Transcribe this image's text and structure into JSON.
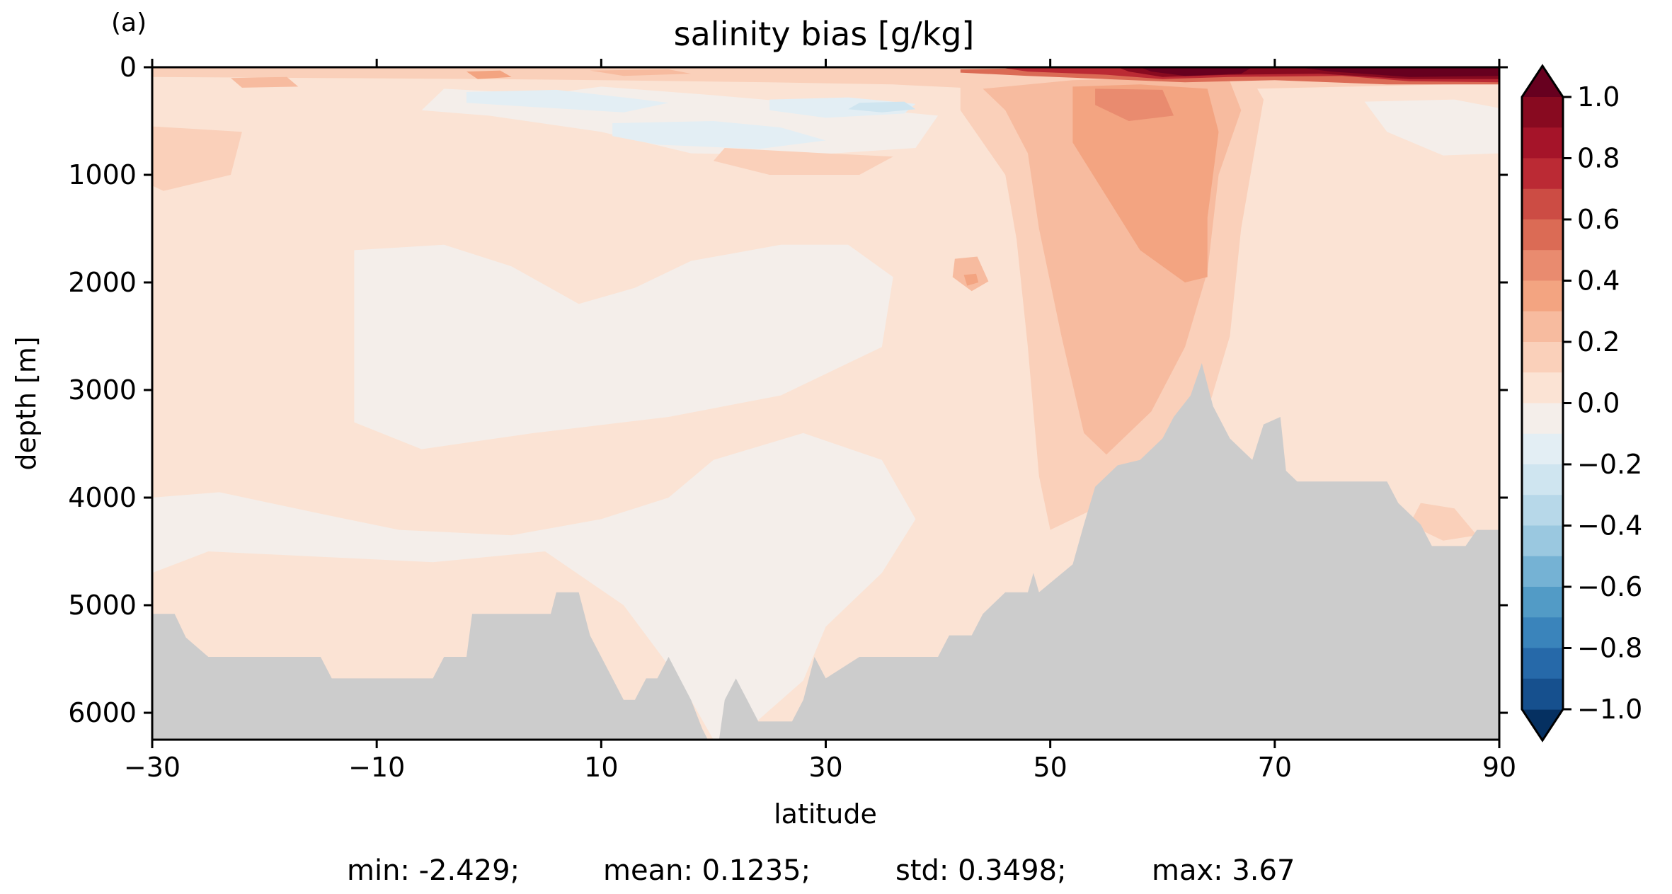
{
  "panel_label": "(a)",
  "stats": {
    "min": "min: -2.429;",
    "mean": "mean: 0.1235;",
    "std": "std: 0.3498;",
    "max": "max: 3.67"
  },
  "chart_data": {
    "type": "heatmap",
    "title": "salinity bias [g/kg]",
    "xlabel": "latitude",
    "ylabel": "depth [m]",
    "xlim": [
      -30,
      90
    ],
    "ylim": [
      6250,
      0
    ],
    "y_inverted": true,
    "x_ticks": [
      -30,
      -10,
      10,
      30,
      50,
      70,
      90
    ],
    "x_tick_labels": [
      "−30",
      "−10",
      "10",
      "30",
      "50",
      "70",
      "90"
    ],
    "y_ticks": [
      0,
      1000,
      2000,
      3000,
      4000,
      5000,
      6000
    ],
    "y_tick_labels": [
      "0",
      "1000",
      "2000",
      "3000",
      "4000",
      "5000",
      "6000"
    ],
    "colorbar": {
      "label_ticks": [
        1.0,
        0.8,
        0.6,
        0.4,
        0.2,
        0.0,
        -0.2,
        -0.4,
        -0.6,
        -0.8,
        -1.0
      ],
      "tick_labels": [
        "1.0",
        "0.8",
        "0.6",
        "0.4",
        "0.2",
        "0.0",
        "−0.2",
        "−0.4",
        "−0.6",
        "−0.8",
        "−1.0"
      ],
      "levels_desc": [
        1.0,
        0.9,
        0.8,
        0.7,
        0.6,
        0.5,
        0.4,
        0.3,
        0.2,
        0.1,
        0.0,
        -0.1,
        -0.2,
        -0.3,
        -0.4,
        -0.5,
        -0.6,
        -0.7,
        -0.8,
        -0.9,
        -1.0
      ],
      "band_colors_desc": [
        "#880a20",
        "#a51429",
        "#bb2a34",
        "#cc4c44",
        "#db6b55",
        "#e98b6f",
        "#f3a481",
        "#f7bb9f",
        "#fad0ba",
        "#fbe3d4",
        "#f4eeea",
        "#e3eef4",
        "#cfe5f0",
        "#b7d8e9",
        "#9ac8e0",
        "#75b2d4",
        "#529bc6",
        "#3a84bb",
        "#2669a9",
        "#16508e",
        "#0d3765"
      ],
      "extend_colors": {
        "max": "#67001f",
        "min": "#053061"
      },
      "cmap": "RdBu_r"
    },
    "field_regions": [
      {
        "value": 0.05,
        "points": [
          [
            -30,
            0
          ],
          [
            90,
            0
          ],
          [
            90,
            6250
          ],
          [
            -30,
            6250
          ]
        ]
      },
      {
        "value": -0.05,
        "points": [
          [
            -30,
            4000
          ],
          [
            -24,
            3950
          ],
          [
            -15,
            4150
          ],
          [
            -8,
            4300
          ],
          [
            2,
            4350
          ],
          [
            10,
            4200
          ],
          [
            16,
            4000
          ],
          [
            20,
            3650
          ],
          [
            28,
            3400
          ],
          [
            35,
            3650
          ],
          [
            38,
            4200
          ],
          [
            35,
            4700
          ],
          [
            30,
            5200
          ],
          [
            28,
            5700
          ],
          [
            22,
            6250
          ],
          [
            20,
            6250
          ],
          [
            17,
            5700
          ],
          [
            12,
            5000
          ],
          [
            5,
            4500
          ],
          [
            -5,
            4600
          ],
          [
            -15,
            4550
          ],
          [
            -25,
            4500
          ],
          [
            -30,
            4700
          ]
        ]
      },
      {
        "value": -0.05,
        "points": [
          [
            -12,
            1700
          ],
          [
            -4,
            1650
          ],
          [
            2,
            1850
          ],
          [
            8,
            2200
          ],
          [
            13,
            2050
          ],
          [
            18,
            1800
          ],
          [
            26,
            1650
          ],
          [
            32,
            1650
          ],
          [
            36,
            1950
          ],
          [
            35,
            2600
          ],
          [
            26,
            3050
          ],
          [
            16,
            3250
          ],
          [
            4,
            3400
          ],
          [
            -6,
            3550
          ],
          [
            -12,
            3300
          ]
        ]
      },
      {
        "value": -0.05,
        "points": [
          [
            -4,
            200
          ],
          [
            5,
            250
          ],
          [
            10,
            180
          ],
          [
            20,
            260
          ],
          [
            30,
            350
          ],
          [
            40,
            450
          ],
          [
            38,
            750
          ],
          [
            28,
            820
          ],
          [
            18,
            800
          ],
          [
            10,
            600
          ],
          [
            0,
            450
          ],
          [
            -6,
            400
          ]
        ]
      },
      {
        "value": -0.15,
        "points": [
          [
            -2,
            230
          ],
          [
            6,
            210
          ],
          [
            12,
            280
          ],
          [
            16,
            330
          ],
          [
            12,
            420
          ],
          [
            4,
            370
          ],
          [
            -2,
            330
          ]
        ]
      },
      {
        "value": -0.15,
        "points": [
          [
            11,
            520
          ],
          [
            20,
            500
          ],
          [
            26,
            560
          ],
          [
            30,
            680
          ],
          [
            24,
            760
          ],
          [
            15,
            720
          ],
          [
            11,
            640
          ]
        ]
      },
      {
        "value": -0.15,
        "points": [
          [
            25,
            300
          ],
          [
            32,
            280
          ],
          [
            38,
            340
          ],
          [
            37,
            430
          ],
          [
            30,
            470
          ],
          [
            25,
            400
          ]
        ]
      },
      {
        "value": -0.25,
        "points": [
          [
            33,
            330
          ],
          [
            37,
            320
          ],
          [
            38,
            390
          ],
          [
            35,
            420
          ],
          [
            32,
            390
          ]
        ]
      },
      {
        "value": -0.05,
        "points": [
          [
            78,
            320
          ],
          [
            86,
            300
          ],
          [
            90,
            380
          ],
          [
            90,
            800
          ],
          [
            85,
            820
          ],
          [
            80,
            600
          ]
        ]
      },
      {
        "value": 0.15,
        "points": [
          [
            -30,
            0
          ],
          [
            90,
            0
          ],
          [
            90,
            150
          ],
          [
            68,
            200
          ],
          [
            55,
            230
          ],
          [
            42,
            190
          ],
          [
            36,
            160
          ],
          [
            25,
            140
          ],
          [
            10,
            120
          ],
          [
            0,
            110
          ],
          [
            -15,
            100
          ],
          [
            -30,
            90
          ]
        ]
      },
      {
        "value": 0.15,
        "points": [
          [
            -30,
            550
          ],
          [
            -22,
            600
          ],
          [
            -23,
            1000
          ],
          [
            -29,
            1150
          ],
          [
            -30,
            1100
          ]
        ]
      },
      {
        "value": 0.15,
        "points": [
          [
            21,
            750
          ],
          [
            30,
            800
          ],
          [
            36,
            830
          ],
          [
            33,
            1000
          ],
          [
            25,
            1000
          ],
          [
            20,
            870
          ]
        ]
      },
      {
        "value": 0.15,
        "points": [
          [
            42,
            180
          ],
          [
            52,
            100
          ],
          [
            62,
            80
          ],
          [
            68,
            120
          ],
          [
            69,
            300
          ],
          [
            68,
            900
          ],
          [
            67,
            1500
          ],
          [
            66,
            2500
          ],
          [
            64,
            3200
          ],
          [
            60,
            3800
          ],
          [
            55,
            4050
          ],
          [
            50,
            4300
          ],
          [
            49,
            3800
          ],
          [
            48,
            2600
          ],
          [
            47,
            1600
          ],
          [
            46,
            1000
          ],
          [
            44,
            700
          ],
          [
            42,
            400
          ]
        ]
      },
      {
        "value": 0.15,
        "points": [
          [
            83,
            4050
          ],
          [
            86,
            4100
          ],
          [
            88,
            4350
          ],
          [
            85,
            4400
          ],
          [
            82,
            4250
          ]
        ]
      },
      {
        "value": 0.25,
        "points": [
          [
            44,
            200
          ],
          [
            52,
            120
          ],
          [
            60,
            100
          ],
          [
            66,
            130
          ],
          [
            67,
            400
          ],
          [
            65,
            1000
          ],
          [
            64,
            1900
          ],
          [
            62,
            2600
          ],
          [
            59,
            3200
          ],
          [
            55,
            3600
          ],
          [
            53,
            3400
          ],
          [
            51,
            2500
          ],
          [
            49,
            1500
          ],
          [
            48,
            800
          ],
          [
            46,
            400
          ]
        ]
      },
      {
        "value": 0.35,
        "points": [
          [
            52,
            180
          ],
          [
            58,
            160
          ],
          [
            64,
            200
          ],
          [
            65,
            600
          ],
          [
            64,
            1400
          ],
          [
            64,
            1950
          ],
          [
            62,
            2000
          ],
          [
            58,
            1700
          ],
          [
            55,
            1200
          ],
          [
            52,
            700
          ]
        ]
      },
      {
        "value": 0.45,
        "points": [
          [
            54,
            200
          ],
          [
            60,
            210
          ],
          [
            61,
            450
          ],
          [
            57,
            500
          ],
          [
            54,
            350
          ]
        ]
      },
      {
        "value": 0.25,
        "points": [
          [
            41.5,
            1780
          ],
          [
            43.5,
            1760
          ],
          [
            44.5,
            1990
          ],
          [
            43,
            2080
          ],
          [
            41.3,
            1950
          ]
        ]
      },
      {
        "value": 0.35,
        "points": [
          [
            42.3,
            1930
          ],
          [
            43.4,
            1920
          ],
          [
            43.6,
            2000
          ],
          [
            42.6,
            2030
          ]
        ]
      },
      {
        "value": 0.35,
        "points": [
          [
            -2,
            40
          ],
          [
            1,
            30
          ],
          [
            2,
            90
          ],
          [
            -1,
            110
          ]
        ]
      },
      {
        "value": 0.25,
        "points": [
          [
            -23,
            100
          ],
          [
            -18,
            90
          ],
          [
            -17,
            180
          ],
          [
            -22,
            190
          ]
        ]
      },
      {
        "value": 0.25,
        "points": [
          [
            9,
            30
          ],
          [
            16,
            20
          ],
          [
            18,
            60
          ],
          [
            12,
            80
          ]
        ]
      },
      {
        "value": 0.55,
        "points": [
          [
            42,
            20
          ],
          [
            52,
            0
          ],
          [
            90,
            0
          ],
          [
            90,
            160
          ],
          [
            80,
            160
          ],
          [
            70,
            120
          ],
          [
            62,
            140
          ],
          [
            55,
            110
          ],
          [
            48,
            80
          ],
          [
            42,
            50
          ]
        ]
      },
      {
        "value": 0.75,
        "points": [
          [
            46,
            10
          ],
          [
            55,
            0
          ],
          [
            90,
            0
          ],
          [
            90,
            140
          ],
          [
            82,
            130
          ],
          [
            76,
            80
          ],
          [
            66,
            90
          ],
          [
            60,
            110
          ],
          [
            55,
            70
          ],
          [
            48,
            40
          ]
        ]
      },
      {
        "value": 0.95,
        "points": [
          [
            56,
            0
          ],
          [
            90,
            0
          ],
          [
            90,
            110
          ],
          [
            82,
            110
          ],
          [
            74,
            60
          ],
          [
            66,
            70
          ],
          [
            60,
            90
          ],
          [
            57,
            40
          ]
        ]
      },
      {
        "value": 1.05,
        "points": [
          [
            58,
            0
          ],
          [
            68,
            0
          ],
          [
            67,
            60
          ],
          [
            62,
            80
          ],
          [
            59,
            40
          ]
        ]
      },
      {
        "value": 1.05,
        "points": [
          [
            72,
            0
          ],
          [
            90,
            0
          ],
          [
            90,
            80
          ],
          [
            82,
            90
          ],
          [
            75,
            40
          ]
        ]
      }
    ],
    "bathymetry_color": "#cccccc",
    "bathymetry": [
      [
        -30,
        5080
      ],
      [
        -28,
        5080
      ],
      [
        -27,
        5300
      ],
      [
        -25,
        5480
      ],
      [
        -15,
        5480
      ],
      [
        -14,
        5680
      ],
      [
        -5,
        5680
      ],
      [
        -4,
        5480
      ],
      [
        -2,
        5480
      ],
      [
        -1.5,
        5080
      ],
      [
        5.5,
        5080
      ],
      [
        6,
        4880
      ],
      [
        8,
        4880
      ],
      [
        9,
        5280
      ],
      [
        11,
        5680
      ],
      [
        12,
        5880
      ],
      [
        13,
        5880
      ],
      [
        14,
        5680
      ],
      [
        15,
        5680
      ],
      [
        16,
        5480
      ],
      [
        17,
        5680
      ],
      [
        18,
        5880
      ],
      [
        19,
        6150
      ],
      [
        19.5,
        6250
      ],
      [
        20.5,
        6250
      ],
      [
        21,
        5880
      ],
      [
        22,
        5680
      ],
      [
        23,
        5880
      ],
      [
        24,
        6080
      ],
      [
        27,
        6080
      ],
      [
        28,
        5880
      ],
      [
        29,
        5480
      ],
      [
        30,
        5680
      ],
      [
        33,
        5480
      ],
      [
        40,
        5480
      ],
      [
        41,
        5280
      ],
      [
        43,
        5280
      ],
      [
        44,
        5080
      ],
      [
        46,
        4880
      ],
      [
        48,
        4880
      ],
      [
        48.5,
        4700
      ],
      [
        49,
        4880
      ],
      [
        52,
        4620
      ],
      [
        53,
        4250
      ],
      [
        54,
        3900
      ],
      [
        56,
        3700
      ],
      [
        58,
        3650
      ],
      [
        60,
        3450
      ],
      [
        61,
        3250
      ],
      [
        62.5,
        3050
      ],
      [
        63.5,
        2750
      ],
      [
        64.5,
        3150
      ],
      [
        66,
        3450
      ],
      [
        68,
        3650
      ],
      [
        69,
        3320
      ],
      [
        70.5,
        3250
      ],
      [
        71,
        3750
      ],
      [
        72,
        3850
      ],
      [
        80,
        3850
      ],
      [
        81,
        4050
      ],
      [
        83,
        4250
      ],
      [
        84,
        4450
      ],
      [
        87,
        4450
      ],
      [
        88,
        4300
      ],
      [
        90,
        4300
      ],
      [
        90,
        6250
      ],
      [
        -30,
        6250
      ]
    ]
  }
}
